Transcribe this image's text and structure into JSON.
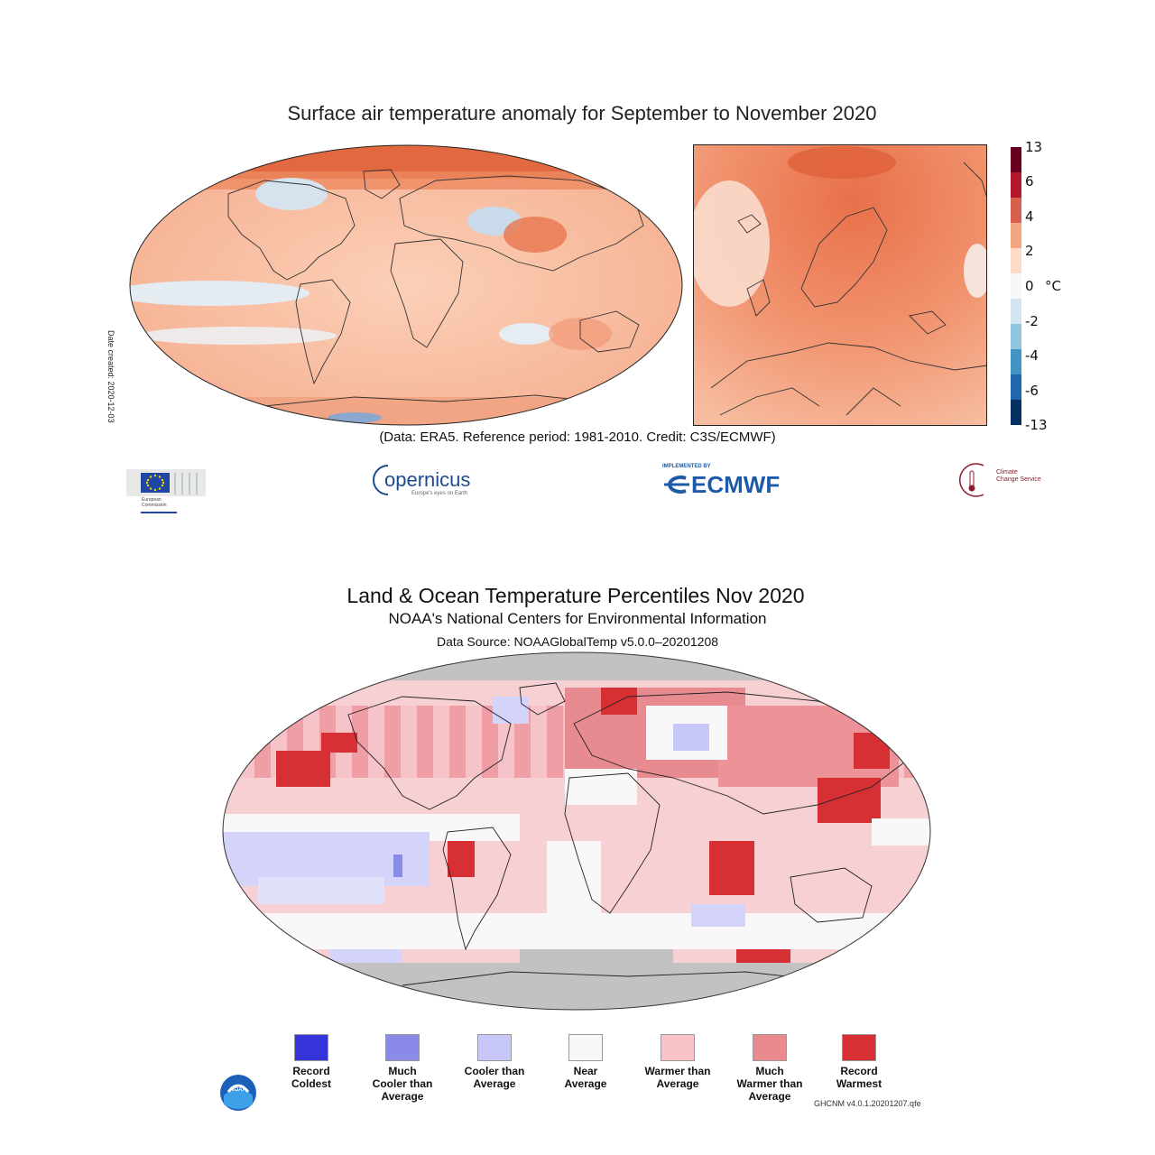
{
  "panel1": {
    "title": "Surface air temperature anomaly for September to November 2020",
    "caption": "(Data: ERA5.  Reference period: 1981-2010.  Credit: C3S/ECMWF)",
    "date_created": "Date created: 2020-12-03",
    "colorbar": {
      "ticks": [
        "13",
        "6",
        "4",
        "2",
        "0",
        "-2",
        "-4",
        "-6",
        "-13"
      ],
      "unit": "°C",
      "colors": [
        "#67001f",
        "#b2182b",
        "#d6604d",
        "#f4a582",
        "#fddbc7",
        "#f7f7f7",
        "#d1e5f0",
        "#92c5de",
        "#4393c3",
        "#2166ac",
        "#053061"
      ]
    },
    "logos": {
      "ec": {
        "name": "european-commission-logo",
        "line1": "European",
        "line2": "Commission"
      },
      "copernicus": {
        "name": "copernicus-logo",
        "text": "opernicus",
        "tagline": "Europe's eyes on Earth"
      },
      "ecmwf": {
        "name": "ecmwf-logo",
        "small": "IMPLEMENTED BY",
        "text": "ECMWF"
      },
      "c3s": {
        "name": "climate-change-service-logo",
        "line1": "Climate",
        "line2": "Change Service"
      }
    }
  },
  "panel2": {
    "title": "Land & Ocean Temperature Percentiles Nov 2020",
    "subtitle": "NOAA's National Centers for Environmental Information",
    "source": "Data Source: NOAAGlobalTemp v5.0.0–20201208",
    "footnote": "GHCNM v4.0.1.20201207.qfe",
    "legend": [
      {
        "l1": "Record",
        "l2": "Coldest",
        "l3": "",
        "color": "#3434d8"
      },
      {
        "l1": "Much",
        "l2": "Cooler than",
        "l3": "Average",
        "color": "#8a8ae8"
      },
      {
        "l1": "Cooler than",
        "l2": "Average",
        "l3": "",
        "color": "#c8c8f8"
      },
      {
        "l1": "Near",
        "l2": "Average",
        "l3": "",
        "color": "#f7f7f7"
      },
      {
        "l1": "Warmer than",
        "l2": "Average",
        "l3": "",
        "color": "#f9c3c8"
      },
      {
        "l1": "Much",
        "l2": "Warmer than",
        "l3": "Average",
        "color": "#ea8a8e"
      },
      {
        "l1": "Record",
        "l2": "Warmest",
        "l3": "",
        "color": "#d63034"
      }
    ],
    "noaa_logo": "NOAA"
  }
}
